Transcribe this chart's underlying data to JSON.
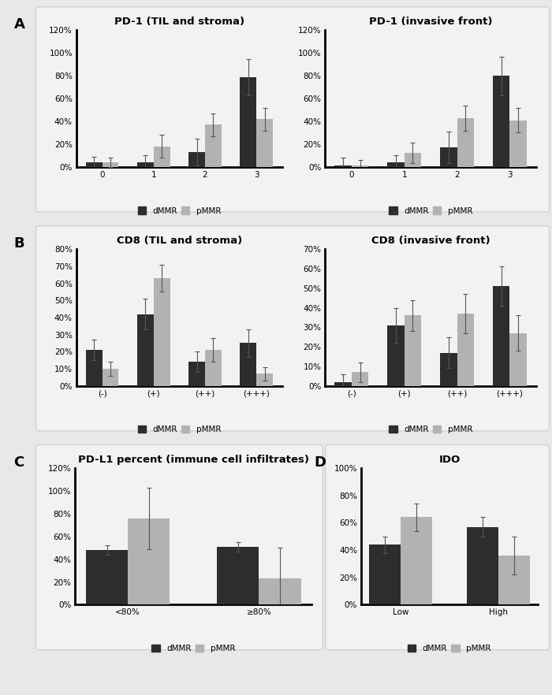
{
  "panel_A_left": {
    "title": "PD-1 (TIL and stroma)",
    "categories": [
      "0",
      "1",
      "2",
      "3"
    ],
    "dMMR": [
      0.04,
      0.04,
      0.13,
      0.79
    ],
    "pMMR": [
      0.04,
      0.18,
      0.37,
      0.42
    ],
    "dMMR_err": [
      0.05,
      0.06,
      0.12,
      0.16
    ],
    "pMMR_err": [
      0.04,
      0.1,
      0.1,
      0.1
    ],
    "ylim": [
      0,
      1.2
    ],
    "yticks": [
      0,
      0.2,
      0.4,
      0.6,
      0.8,
      1.0,
      1.2
    ],
    "yticklabels": [
      "0%",
      "20%",
      "40%",
      "60%",
      "80%",
      "100%",
      "120%"
    ]
  },
  "panel_A_right": {
    "title": "PD-1 (invasive front)",
    "categories": [
      "0",
      "1",
      "2",
      "3"
    ],
    "dMMR": [
      0.01,
      0.04,
      0.17,
      0.8
    ],
    "pMMR": [
      0.01,
      0.12,
      0.43,
      0.41
    ],
    "dMMR_err": [
      0.07,
      0.06,
      0.14,
      0.17
    ],
    "pMMR_err": [
      0.05,
      0.09,
      0.11,
      0.11
    ],
    "ylim": [
      0,
      1.2
    ],
    "yticks": [
      0,
      0.2,
      0.4,
      0.6,
      0.8,
      1.0,
      1.2
    ],
    "yticklabels": [
      "0%",
      "20%",
      "40%",
      "60%",
      "80%",
      "100%",
      "120%"
    ]
  },
  "panel_B_left": {
    "title": "CD8 (TIL and stroma)",
    "categories": [
      "(-)",
      "(+)",
      "(++)",
      "(+++)"
    ],
    "dMMR": [
      0.21,
      0.42,
      0.14,
      0.25
    ],
    "pMMR": [
      0.1,
      0.63,
      0.21,
      0.07
    ],
    "dMMR_err": [
      0.06,
      0.09,
      0.06,
      0.08
    ],
    "pMMR_err": [
      0.04,
      0.08,
      0.07,
      0.04
    ],
    "ylim": [
      0,
      0.8
    ],
    "yticks": [
      0,
      0.1,
      0.2,
      0.3,
      0.4,
      0.5,
      0.6,
      0.7,
      0.8
    ],
    "yticklabels": [
      "0%",
      "10%",
      "20%",
      "30%",
      "40%",
      "50%",
      "60%",
      "70%",
      "80%"
    ]
  },
  "panel_B_right": {
    "title": "CD8 (invasive front)",
    "categories": [
      "(-)",
      "(+)",
      "(++)",
      "(+++)"
    ],
    "dMMR": [
      0.02,
      0.31,
      0.17,
      0.51
    ],
    "pMMR": [
      0.07,
      0.36,
      0.37,
      0.27
    ],
    "dMMR_err": [
      0.04,
      0.09,
      0.08,
      0.1
    ],
    "pMMR_err": [
      0.05,
      0.08,
      0.1,
      0.09
    ],
    "ylim": [
      0,
      0.7
    ],
    "yticks": [
      0,
      0.1,
      0.2,
      0.3,
      0.4,
      0.5,
      0.6,
      0.7
    ],
    "yticklabels": [
      "0%",
      "10%",
      "20%",
      "30%",
      "40%",
      "50%",
      "60%",
      "70%"
    ]
  },
  "panel_C": {
    "title": "PD-L1 percent (immune cell infiltrates)",
    "categories": [
      "<80%",
      "≥80%"
    ],
    "dMMR": [
      0.48,
      0.51
    ],
    "pMMR": [
      0.76,
      0.23
    ],
    "dMMR_err": [
      0.04,
      0.04
    ],
    "pMMR_err": [
      0.27,
      0.27
    ],
    "ylim": [
      0,
      1.2
    ],
    "yticks": [
      0,
      0.2,
      0.4,
      0.6,
      0.8,
      1.0,
      1.2
    ],
    "yticklabels": [
      "0%",
      "20%",
      "40%",
      "60%",
      "80%",
      "100%",
      "120%"
    ]
  },
  "panel_D": {
    "title": "IDO",
    "categories": [
      "Low",
      "High"
    ],
    "dMMR": [
      0.44,
      0.57
    ],
    "pMMR": [
      0.64,
      0.36
    ],
    "dMMR_err": [
      0.06,
      0.07
    ],
    "pMMR_err": [
      0.1,
      0.14
    ],
    "ylim": [
      0,
      1.0
    ],
    "yticks": [
      0,
      0.2,
      0.4,
      0.6,
      0.8,
      1.0
    ],
    "yticklabels": [
      "0%",
      "20%",
      "40%",
      "60%",
      "80%",
      "100%"
    ]
  },
  "dMMR_color": "#2d2d2d",
  "pMMR_color": "#b2b2b2",
  "bar_width": 0.32,
  "legend_dMMR": "dMMR",
  "legend_pMMR": "pMMR",
  "title_fontsize": 9.5,
  "tick_fontsize": 7.5,
  "legend_fontsize": 7.5,
  "panel_label_fontsize": 13,
  "box_facecolor": "#f2f2f2",
  "box_edgecolor": "#cccccc",
  "fig_facecolor": "#e8e8e8"
}
